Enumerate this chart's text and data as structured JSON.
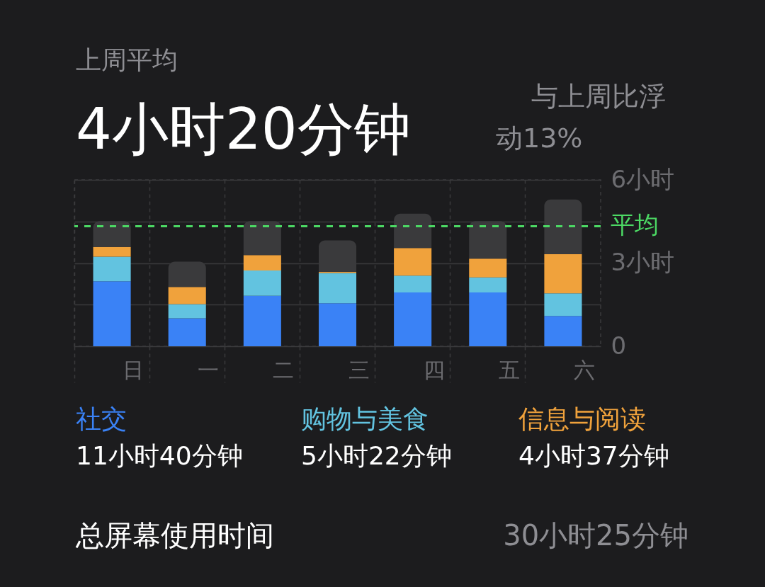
{
  "chart_data": {
    "type": "bar",
    "stacked": true,
    "title": "上周平均",
    "annotations": [
      "4小时20分钟",
      "与上周比浮动13%",
      "11小时40分钟",
      "5小时22分钟",
      "4小时37分钟",
      "总屏幕使用时间",
      "30小时25分钟"
    ],
    "categories": [
      "日",
      "一",
      "二",
      "三",
      "四",
      "五",
      "六"
    ],
    "series": [
      {
        "name": "社交",
        "color": "#3a82f6",
        "values": [
          2.34,
          1.01,
          1.82,
          1.55,
          1.94,
          1.94,
          1.09
        ]
      },
      {
        "name": "购物与美食",
        "color": "#62c3e0",
        "values": [
          0.89,
          0.51,
          0.91,
          1.09,
          0.61,
          0.54,
          0.82
        ]
      },
      {
        "name": "信息与阅读",
        "color": "#f0a23c",
        "values": [
          0.35,
          0.62,
          0.56,
          0.04,
          0.99,
          0.68,
          1.41
        ]
      },
      {
        "color": "#3a3a3c",
        "values": [
          0.93,
          0.91,
          1.22,
          1.14,
          1.24,
          1.35,
          1.97
        ]
      }
    ],
    "ylim": [
      0,
      6
    ],
    "yticks": [
      0,
      {
        "value": 1.5,
        "label": null
      },
      {
        "value": 3,
        "label": "3小时"
      },
      {
        "value": 4.5,
        "label": null
      },
      {
        "value": 6,
        "label": "6小时"
      }
    ],
    "ref_lines": [
      {
        "axis": "y",
        "value": 4.33,
        "label": "平均",
        "color": "#4cd964",
        "line_style": "dashed"
      }
    ],
    "grid": true,
    "legend": "bottom"
  }
}
